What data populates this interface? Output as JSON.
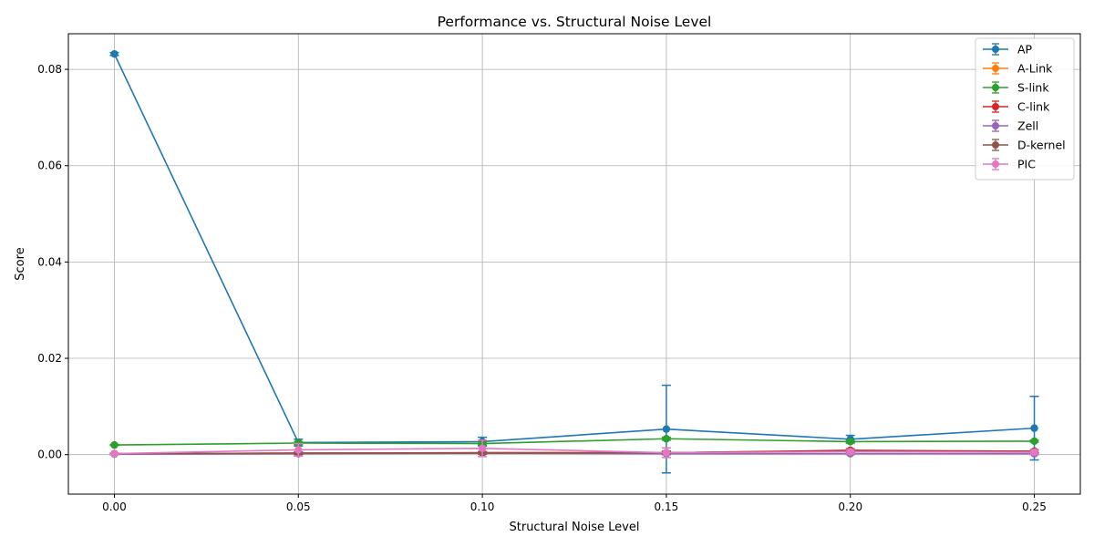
{
  "chart_data": {
    "type": "line",
    "title": "Performance vs. Structural Noise Level",
    "xlabel": "Structural Noise Level",
    "ylabel": "Score",
    "x": [
      0.0,
      0.05,
      0.1,
      0.15,
      0.2,
      0.25
    ],
    "x_tick_labels": [
      "0.00",
      "0.05",
      "0.10",
      "0.15",
      "0.20",
      "0.25"
    ],
    "y_ticks": [
      0.0,
      0.02,
      0.04,
      0.06,
      0.08
    ],
    "y_tick_labels": [
      "0.00",
      "0.02",
      "0.04",
      "0.06",
      "0.08"
    ],
    "xlim": [
      -0.0125,
      0.2625
    ],
    "ylim": [
      -0.0082,
      0.0874
    ],
    "grid": true,
    "legend_position": "top-right",
    "series": [
      {
        "name": "AP",
        "color": "#1f77b4",
        "values": [
          0.0832,
          0.0025,
          0.0027,
          0.0053,
          0.0032,
          0.0055
        ],
        "errors": [
          0.0003,
          0.0007,
          0.0009,
          0.0091,
          0.0008,
          0.0066
        ]
      },
      {
        "name": "A-Link",
        "color": "#ff7f0e",
        "values": [
          0.0002,
          0.0003,
          0.0004,
          0.0004,
          0.0008,
          0.0007
        ],
        "errors": [
          0.0001,
          0.0002,
          0.0002,
          0.0003,
          0.0003,
          0.0003
        ]
      },
      {
        "name": "S-link",
        "color": "#2ca02c",
        "values": [
          0.002,
          0.0024,
          0.0023,
          0.0033,
          0.0027,
          0.0028
        ],
        "errors": [
          0.0001,
          0.0003,
          0.0003,
          0.0003,
          0.0002,
          0.0002
        ]
      },
      {
        "name": "C-link",
        "color": "#d62728",
        "values": [
          0.0002,
          0.0003,
          0.0004,
          0.0004,
          0.0009,
          0.0007
        ],
        "errors": [
          0.0001,
          0.0002,
          0.0002,
          0.0003,
          0.0003,
          0.0003
        ]
      },
      {
        "name": "Zell",
        "color": "#9467bd",
        "values": [
          0.0001,
          0.0002,
          0.0003,
          0.0002,
          0.0002,
          0.0002
        ],
        "errors": [
          0.0001,
          0.0002,
          0.0002,
          0.0002,
          0.0002,
          0.0002
        ]
      },
      {
        "name": "D-kernel",
        "color": "#8c564b",
        "values": [
          0.0002,
          0.0003,
          0.0003,
          0.0004,
          0.0007,
          0.0006
        ],
        "errors": [
          0.0001,
          0.0002,
          0.0002,
          0.0003,
          0.0003,
          0.0003
        ]
      },
      {
        "name": "PIC",
        "color": "#e377c2",
        "values": [
          0.0002,
          0.001,
          0.0013,
          0.0004,
          0.0006,
          0.0005
        ],
        "errors": [
          0.0001,
          0.0013,
          0.0017,
          0.001,
          0.0004,
          0.0004
        ]
      }
    ]
  }
}
